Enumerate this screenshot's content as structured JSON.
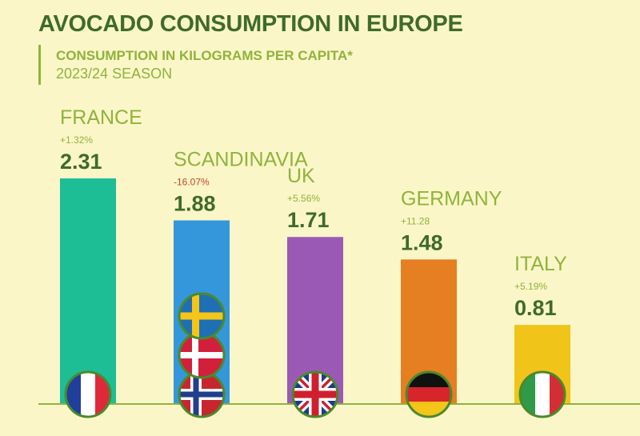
{
  "header": {
    "title": "AVOCADO CONSUMPTION IN EUROPE",
    "subtitle": "CONSUMPTION IN KILOGRAMS PER CAPITA*",
    "season": "2023/24 SEASON"
  },
  "colors": {
    "positive": "#8fb33c",
    "negative": "#c9432c",
    "value": "#3f6b2a",
    "axis": "#8fb33c"
  },
  "chart_data": {
    "type": "bar",
    "title": "AVOCADO CONSUMPTION IN EUROPE",
    "subtitle": "CONSUMPTION IN KILOGRAMS PER CAPITA*",
    "note": "2023/24 SEASON",
    "xlabel": "",
    "ylabel": "",
    "ylim": [
      0,
      2.31
    ],
    "grid": false,
    "categories": [
      "FRANCE",
      "SCANDINAVIA",
      "UK",
      "GERMANY",
      "ITALY"
    ],
    "values": [
      2.31,
      1.88,
      1.71,
      1.48,
      0.81
    ],
    "value_labels": [
      "2.31",
      "1.88",
      "1.71",
      "1.48",
      "0.81"
    ],
    "changes": [
      "+1.32%",
      "-16.07%",
      "+5.56%",
      "+11.28",
      "+5.19%"
    ],
    "change_negative": [
      false,
      true,
      false,
      false,
      false
    ],
    "bar_colors": [
      "#1dbd96",
      "#3597db",
      "#9b59b6",
      "#e67e22",
      "#f0c419"
    ],
    "flags": [
      [
        "france-flag-icon"
      ],
      [
        "norway-flag-icon",
        "denmark-flag-icon",
        "sweden-flag-icon"
      ],
      [
        "uk-flag-icon"
      ],
      [
        "germany-flag-icon"
      ],
      [
        "italy-flag-icon"
      ]
    ]
  }
}
